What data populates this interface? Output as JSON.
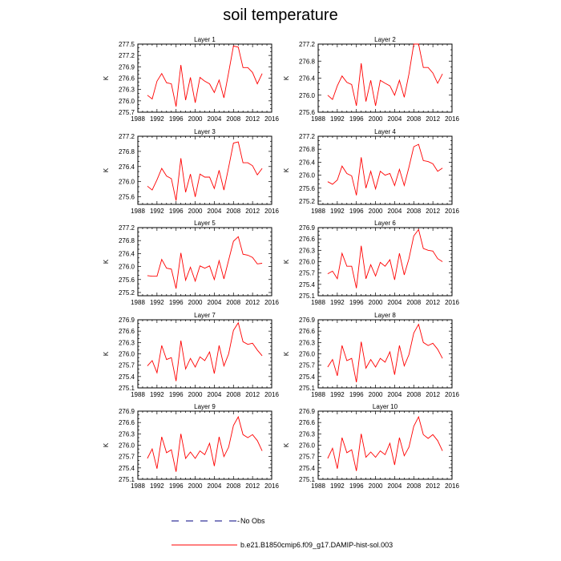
{
  "figure": {
    "title": "soil temperature"
  },
  "legend": {
    "obs_label": "No Obs",
    "model_label": "b.e21.B1850cmip6.f09_g17.DAMIP-hist-sol.003",
    "obs_color": "#000080",
    "model_color": "#ff0000"
  },
  "chart_data": [
    {
      "type": "line",
      "title": "Layer 1",
      "ylabel": "K",
      "xlim": [
        1988,
        2016
      ],
      "xticks": [
        1988,
        1992,
        1996,
        2000,
        2004,
        2008,
        2012,
        2016
      ],
      "ylim": [
        275.7,
        277.5
      ],
      "yticks": [
        "275.7",
        "276.0",
        "276.3",
        "276.6",
        "276.9",
        "277.2",
        "277.5"
      ],
      "series": [
        {
          "color": "#ff0000",
          "x": [
            1990,
            1991,
            1992,
            1993,
            1994,
            1995,
            1996,
            1997,
            1998,
            1999,
            2000,
            2001,
            2002,
            2003,
            2004,
            2005,
            2006,
            2007,
            2008,
            2009,
            2010,
            2011,
            2012,
            2013,
            2014
          ],
          "values": [
            276.15,
            276.05,
            276.52,
            276.72,
            276.48,
            276.45,
            275.85,
            276.95,
            276.02,
            276.62,
            275.95,
            276.62,
            276.52,
            276.45,
            276.22,
            276.55,
            276.08,
            276.75,
            277.45,
            277.42,
            276.88,
            276.88,
            276.75,
            276.45,
            276.72
          ]
        }
      ]
    },
    {
      "type": "line",
      "title": "Layer 2",
      "ylabel": "K",
      "xlim": [
        1988,
        2016
      ],
      "xticks": [
        1988,
        1992,
        1996,
        2000,
        2004,
        2008,
        2012,
        2016
      ],
      "ylim": [
        275.6,
        277.2
      ],
      "yticks": [
        "275.6",
        "276.0",
        "276.4",
        "276.8",
        "277.2"
      ],
      "series": [
        {
          "color": "#ff0000",
          "x": [
            1990,
            1991,
            1992,
            1993,
            1994,
            1995,
            1996,
            1997,
            1998,
            1999,
            2000,
            2001,
            2002,
            2003,
            2004,
            2005,
            2006,
            2007,
            2008,
            2009,
            2010,
            2011,
            2012,
            2013,
            2014
          ],
          "values": [
            276.0,
            275.9,
            276.22,
            276.45,
            276.3,
            276.25,
            275.75,
            276.75,
            275.85,
            276.35,
            275.75,
            276.35,
            276.28,
            276.22,
            276.0,
            276.35,
            275.95,
            276.5,
            277.2,
            277.2,
            276.65,
            276.65,
            276.52,
            276.28,
            276.5
          ]
        }
      ]
    },
    {
      "type": "line",
      "title": "Layer 3",
      "ylabel": "K",
      "xlim": [
        1988,
        2016
      ],
      "xticks": [
        1988,
        1992,
        1996,
        2000,
        2004,
        2008,
        2012,
        2016
      ],
      "ylim": [
        275.4,
        277.2
      ],
      "yticks": [
        "275.6",
        "276.0",
        "276.4",
        "276.8",
        "277.2"
      ],
      "series": [
        {
          "color": "#ff0000",
          "x": [
            1990,
            1991,
            1992,
            1993,
            1994,
            1995,
            1996,
            1997,
            1998,
            1999,
            2000,
            2001,
            2002,
            2003,
            2004,
            2005,
            2006,
            2007,
            2008,
            2009,
            2010,
            2011,
            2012,
            2013,
            2014
          ],
          "values": [
            275.88,
            275.78,
            276.05,
            276.35,
            276.15,
            276.08,
            275.5,
            276.62,
            275.72,
            276.2,
            275.6,
            276.2,
            276.12,
            276.12,
            275.82,
            276.3,
            275.78,
            276.38,
            277.02,
            277.05,
            276.5,
            276.5,
            276.42,
            276.18,
            276.35
          ]
        }
      ]
    },
    {
      "type": "line",
      "title": "Layer 4",
      "ylabel": "K",
      "xlim": [
        1988,
        2016
      ],
      "xticks": [
        1988,
        1992,
        1996,
        2000,
        2004,
        2008,
        2012,
        2016
      ],
      "ylim": [
        275.1,
        277.2
      ],
      "yticks": [
        "275.2",
        "275.6",
        "276.0",
        "276.4",
        "276.8",
        "277.2"
      ],
      "series": [
        {
          "color": "#ff0000",
          "x": [
            1990,
            1991,
            1992,
            1993,
            1994,
            1995,
            1996,
            1997,
            1998,
            1999,
            2000,
            2001,
            2002,
            2003,
            2004,
            2005,
            2006,
            2007,
            2008,
            2009,
            2010,
            2011,
            2012,
            2013,
            2014
          ],
          "values": [
            275.8,
            275.72,
            275.85,
            276.28,
            276.05,
            275.98,
            275.38,
            276.55,
            275.6,
            276.12,
            275.58,
            276.12,
            276.0,
            276.05,
            275.68,
            276.18,
            275.68,
            276.25,
            276.88,
            276.95,
            276.45,
            276.42,
            276.35,
            276.12,
            276.22
          ]
        }
      ]
    },
    {
      "type": "line",
      "title": "Layer 5",
      "ylabel": "K",
      "xlim": [
        1988,
        2016
      ],
      "xticks": [
        1988,
        1992,
        1996,
        2000,
        2004,
        2008,
        2012,
        2016
      ],
      "ylim": [
        275.1,
        277.2
      ],
      "yticks": [
        "275.2",
        "275.6",
        "276.0",
        "276.4",
        "276.8",
        "277.2"
      ],
      "series": [
        {
          "color": "#ff0000",
          "x": [
            1990,
            1991,
            1992,
            1993,
            1994,
            1995,
            1996,
            1997,
            1998,
            1999,
            2000,
            2001,
            2002,
            2003,
            2004,
            2005,
            2006,
            2007,
            2008,
            2009,
            2010,
            2011,
            2012,
            2013,
            2014
          ],
          "values": [
            275.72,
            275.7,
            275.7,
            276.22,
            275.95,
            275.92,
            275.32,
            276.42,
            275.58,
            275.98,
            275.55,
            276.02,
            275.95,
            276.02,
            275.6,
            276.18,
            275.62,
            276.2,
            276.78,
            276.92,
            276.38,
            276.35,
            276.28,
            276.08,
            276.1
          ]
        }
      ]
    },
    {
      "type": "line",
      "title": "Layer 6",
      "ylabel": "K",
      "xlim": [
        1988,
        2016
      ],
      "xticks": [
        1988,
        1992,
        1996,
        2000,
        2004,
        2008,
        2012,
        2016
      ],
      "ylim": [
        275.1,
        276.9
      ],
      "yticks": [
        "275.1",
        "275.4",
        "275.7",
        "276.0",
        "276.3",
        "276.6",
        "276.9"
      ],
      "series": [
        {
          "color": "#ff0000",
          "x": [
            1990,
            1991,
            1992,
            1993,
            1994,
            1995,
            1996,
            1997,
            1998,
            1999,
            2000,
            2001,
            2002,
            2003,
            2004,
            2005,
            2006,
            2007,
            2008,
            2009,
            2010,
            2011,
            2012,
            2013,
            2014
          ],
          "values": [
            275.68,
            275.75,
            275.55,
            276.22,
            275.88,
            275.88,
            275.3,
            276.42,
            275.55,
            275.92,
            275.62,
            275.98,
            275.88,
            276.05,
            275.52,
            276.22,
            275.65,
            276.08,
            276.68,
            276.85,
            276.35,
            276.3,
            276.28,
            276.08,
            276.0
          ]
        }
      ]
    },
    {
      "type": "line",
      "title": "Layer 7",
      "ylabel": "K",
      "xlim": [
        1988,
        2016
      ],
      "xticks": [
        1988,
        1992,
        1996,
        2000,
        2004,
        2008,
        2012,
        2016
      ],
      "ylim": [
        275.1,
        276.9
      ],
      "yticks": [
        "275.1",
        "275.4",
        "275.7",
        "276.0",
        "276.3",
        "276.6",
        "276.9"
      ],
      "series": [
        {
          "color": "#ff0000",
          "x": [
            1990,
            1991,
            1992,
            1993,
            1994,
            1995,
            1996,
            1997,
            1998,
            1999,
            2000,
            2001,
            2002,
            2003,
            2004,
            2005,
            2006,
            2007,
            2008,
            2009,
            2010,
            2011,
            2012,
            2013,
            2014
          ],
          "values": [
            275.68,
            275.82,
            275.5,
            276.22,
            275.85,
            275.9,
            275.28,
            276.35,
            275.6,
            275.88,
            275.65,
            275.92,
            275.82,
            276.05,
            275.48,
            276.22,
            275.68,
            276.0,
            276.62,
            276.82,
            276.32,
            276.25,
            276.28,
            276.1,
            275.95
          ]
        }
      ]
    },
    {
      "type": "line",
      "title": "Layer 8",
      "ylabel": "K",
      "xlim": [
        1988,
        2016
      ],
      "xticks": [
        1988,
        1992,
        1996,
        2000,
        2004,
        2008,
        2012,
        2016
      ],
      "ylim": [
        275.1,
        276.9
      ],
      "yticks": [
        "275.1",
        "275.4",
        "275.7",
        "276.0",
        "276.3",
        "276.6",
        "276.9"
      ],
      "series": [
        {
          "color": "#ff0000",
          "x": [
            1990,
            1991,
            1992,
            1993,
            1994,
            1995,
            1996,
            1997,
            1998,
            1999,
            2000,
            2001,
            2002,
            2003,
            2004,
            2005,
            2006,
            2007,
            2008,
            2009,
            2010,
            2011,
            2012,
            2013,
            2014
          ],
          "values": [
            275.65,
            275.85,
            275.42,
            276.22,
            275.82,
            275.88,
            275.25,
            276.32,
            275.62,
            275.85,
            275.65,
            275.88,
            275.78,
            276.05,
            275.45,
            276.22,
            275.68,
            275.98,
            276.55,
            276.78,
            276.3,
            276.22,
            276.28,
            276.12,
            275.88
          ]
        }
      ]
    },
    {
      "type": "line",
      "title": "Layer 9",
      "ylabel": "K",
      "xlim": [
        1988,
        2016
      ],
      "xticks": [
        1988,
        1992,
        1996,
        2000,
        2004,
        2008,
        2012,
        2016
      ],
      "ylim": [
        275.1,
        276.9
      ],
      "yticks": [
        "275.1",
        "275.4",
        "275.7",
        "276.0",
        "276.3",
        "276.6",
        "276.9"
      ],
      "series": [
        {
          "color": "#ff0000",
          "x": [
            1990,
            1991,
            1992,
            1993,
            1994,
            1995,
            1996,
            1997,
            1998,
            1999,
            2000,
            2001,
            2002,
            2003,
            2004,
            2005,
            2006,
            2007,
            2008,
            2009,
            2010,
            2011,
            2012,
            2013,
            2014
          ],
          "values": [
            275.65,
            275.9,
            275.38,
            276.22,
            275.8,
            275.88,
            275.3,
            276.3,
            275.65,
            275.82,
            275.65,
            275.85,
            275.75,
            276.05,
            275.45,
            276.22,
            275.7,
            275.95,
            276.52,
            276.75,
            276.28,
            276.2,
            276.28,
            276.12,
            275.85
          ]
        }
      ]
    },
    {
      "type": "line",
      "title": "Layer 10",
      "ylabel": "K",
      "xlim": [
        1988,
        2016
      ],
      "xticks": [
        1988,
        1992,
        1996,
        2000,
        2004,
        2008,
        2012,
        2016
      ],
      "ylim": [
        275.1,
        276.9
      ],
      "yticks": [
        "275.1",
        "275.4",
        "275.7",
        "276.0",
        "276.3",
        "276.6",
        "276.9"
      ],
      "series": [
        {
          "color": "#ff0000",
          "x": [
            1990,
            1991,
            1992,
            1993,
            1994,
            1995,
            1996,
            1997,
            1998,
            1999,
            2000,
            2001,
            2002,
            2003,
            2004,
            2005,
            2006,
            2007,
            2008,
            2009,
            2010,
            2011,
            2012,
            2013,
            2014
          ],
          "values": [
            275.65,
            275.92,
            275.38,
            276.2,
            275.8,
            275.88,
            275.32,
            276.3,
            275.68,
            275.82,
            275.68,
            275.85,
            275.75,
            276.05,
            275.48,
            276.2,
            275.72,
            275.95,
            276.5,
            276.75,
            276.28,
            276.18,
            276.28,
            276.12,
            275.85
          ]
        }
      ]
    }
  ]
}
